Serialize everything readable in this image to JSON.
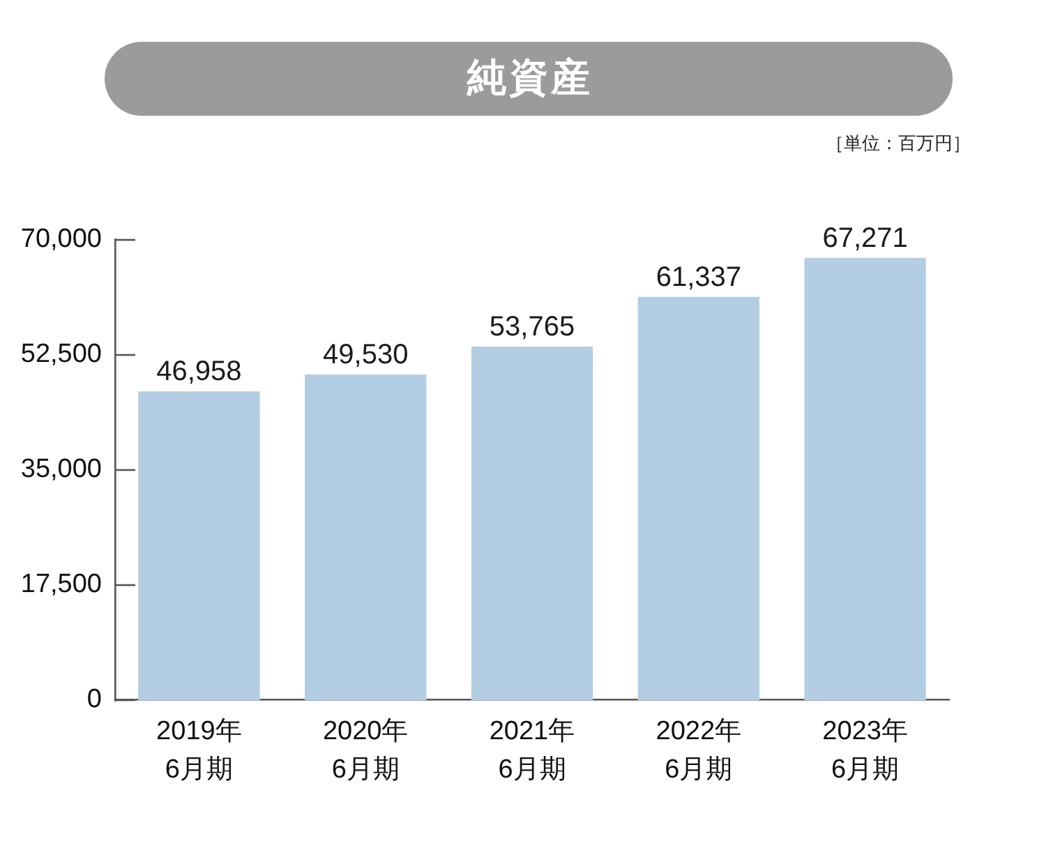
{
  "chart_data": {
    "type": "bar",
    "title": "純資産",
    "annotations": [
      "［単位：百万円］"
    ],
    "categories": [
      "2019年\n6月期",
      "2020年\n6月期",
      "2021年\n6月期",
      "2022年\n6月期",
      "2023年\n6月期"
    ],
    "values": [
      46958,
      49530,
      53765,
      61337,
      67271
    ],
    "value_labels": [
      "46,958",
      "49,530",
      "53,765",
      "61,337",
      "67,271"
    ],
    "color": "#b3cee3",
    "ylim": [
      0,
      70000
    ],
    "yticks": [
      {
        "value": 0,
        "label": "0"
      },
      {
        "value": 17500,
        "label": "17,500"
      },
      {
        "value": 35000,
        "label": "35,000"
      },
      {
        "value": 52500,
        "label": "52,500"
      },
      {
        "value": 70000,
        "label": "70,000"
      }
    ]
  }
}
